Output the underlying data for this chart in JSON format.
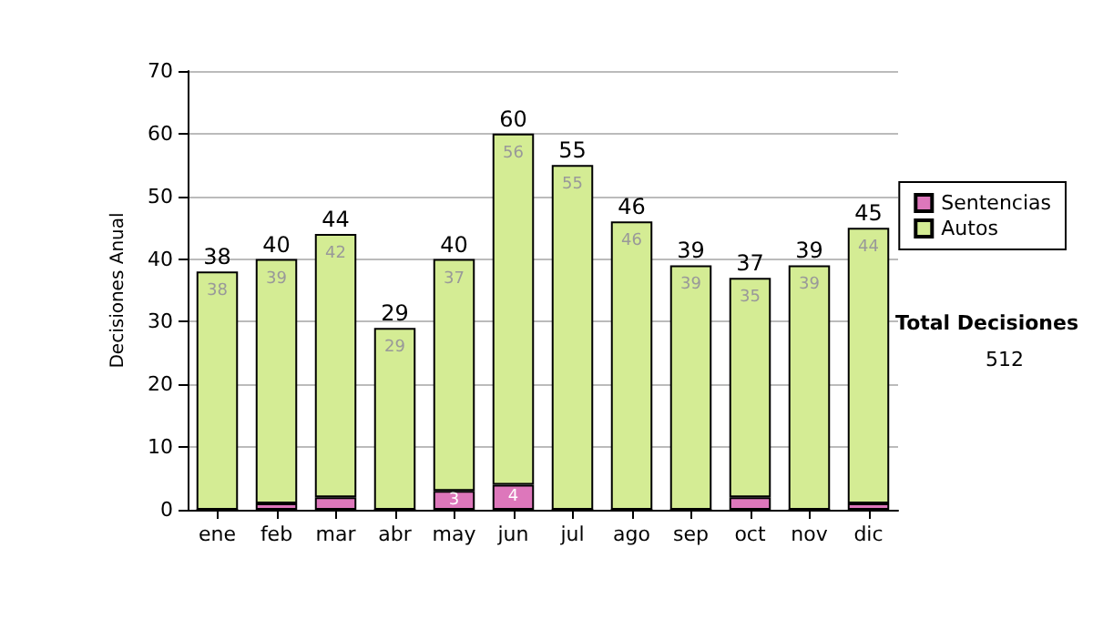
{
  "chart_data": {
    "type": "bar",
    "stacked": true,
    "ylabel": "Decisiones Anual",
    "categories": [
      "ene",
      "feb",
      "mar",
      "abr",
      "may",
      "jun",
      "jul",
      "ago",
      "sep",
      "oct",
      "nov",
      "dic"
    ],
    "series": [
      {
        "name": "Sentencias",
        "color": "#dd77bb",
        "values": [
          0,
          1,
          2,
          0,
          3,
          4,
          0,
          0,
          0,
          2,
          0,
          1
        ],
        "value_labels": [
          null,
          null,
          null,
          null,
          "3",
          "4",
          null,
          null,
          null,
          null,
          null,
          null
        ]
      },
      {
        "name": "Autos",
        "color": "#d4ec94",
        "values": [
          38,
          39,
          42,
          29,
          37,
          56,
          55,
          46,
          39,
          35,
          39,
          44
        ],
        "value_labels": [
          "38",
          "39",
          "42",
          "29",
          "37",
          "56",
          "55",
          "46",
          "39",
          "35",
          "39",
          "44"
        ]
      }
    ],
    "totals": [
      "38",
      "40",
      "44",
      "29",
      "40",
      "60",
      "55",
      "46",
      "39",
      "37",
      "39",
      "45"
    ],
    "ylim": [
      0,
      70
    ],
    "yticks": [
      0,
      10,
      20,
      30,
      40,
      50,
      60,
      70
    ],
    "grid": "y",
    "legend": "right",
    "annotations": [
      "Total Decisiones",
      "512"
    ]
  }
}
